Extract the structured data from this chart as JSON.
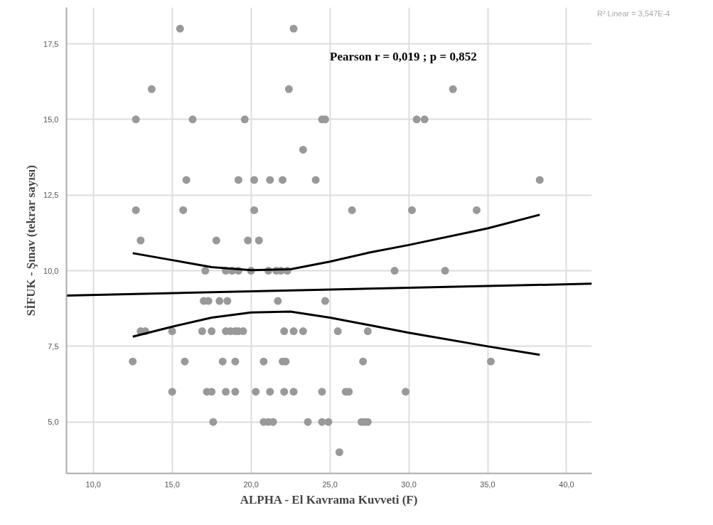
{
  "chart_data": {
    "type": "scatter",
    "xlabel": "ALPHA - El Kavrama Kuvveti (F)",
    "ylabel": "SİFUK - Şınav (tekrar sayısı)",
    "annotations": [
      "Pearson r = 0,019 ; p = 0,852",
      "R² Linear = 3,547E-4"
    ],
    "xlim": [
      8.3,
      41.6
    ],
    "ylim": [
      3.3,
      18.7
    ],
    "xticks": [
      {
        "value": 10,
        "label": "10,0"
      },
      {
        "value": 15,
        "label": "15,0"
      },
      {
        "value": 20,
        "label": "20,0"
      },
      {
        "value": 25,
        "label": "25,0"
      },
      {
        "value": 30,
        "label": "30,0"
      },
      {
        "value": 35,
        "label": "35,0"
      },
      {
        "value": 40,
        "label": "40,0"
      }
    ],
    "yticks": [
      {
        "value": 5,
        "label": "5,0"
      },
      {
        "value": 7.5,
        "label": "7,5"
      },
      {
        "value": 10,
        "label": "10,0"
      },
      {
        "value": 12.5,
        "label": "12,5"
      },
      {
        "value": 15,
        "label": "15,0"
      },
      {
        "value": 17.5,
        "label": "17,5"
      }
    ],
    "grid": true,
    "line_style": "solid",
    "series": [
      {
        "marker": "circle",
        "color": "#999999",
        "x": [
          15.5,
          22.7,
          13.7,
          22.4,
          32.8,
          12.7,
          16.3,
          19.6,
          24.5,
          24.7,
          30.5,
          31.0,
          23.3,
          15.9,
          19.2,
          20.2,
          21.2,
          22.0,
          24.1,
          38.3,
          12.7,
          15.7,
          20.2,
          26.4,
          30.2,
          34.3,
          13.0,
          17.8,
          19.8,
          20.5,
          17.1,
          18.4,
          18.8,
          19.2,
          20.0,
          21.1,
          21.6,
          21.9,
          22.3,
          29.1,
          32.3,
          17.0,
          17.3,
          18.0,
          18.5,
          21.7,
          24.7,
          13.0,
          13.3,
          15.0,
          16.9,
          17.5,
          18.4,
          18.7,
          19.0,
          19.2,
          19.5,
          22.1,
          22.7,
          23.3,
          25.5,
          27.4,
          12.5,
          15.8,
          18.2,
          19.0,
          20.8,
          22.0,
          22.2,
          27.1,
          35.2,
          15.0,
          17.2,
          17.5,
          18.4,
          19.0,
          20.3,
          21.2,
          22.1,
          22.7,
          24.5,
          26.0,
          26.2,
          29.8,
          17.6,
          20.8,
          21.1,
          21.4,
          23.6,
          24.5,
          24.9,
          27.0,
          27.2,
          27.4,
          25.6
        ],
        "values": [
          18,
          18,
          16,
          16,
          16,
          15,
          15,
          15,
          15,
          15,
          15,
          15,
          14,
          13,
          13,
          13,
          13,
          13,
          13,
          13,
          12,
          12,
          12,
          12,
          12,
          12,
          11,
          11,
          11,
          11,
          10,
          10,
          10,
          10,
          10,
          10,
          10,
          10,
          10,
          10,
          10,
          9,
          9,
          9,
          9,
          9,
          9,
          8,
          8,
          8,
          8,
          8,
          8,
          8,
          8,
          8,
          8,
          8,
          8,
          8,
          8,
          8,
          7,
          7,
          7,
          7,
          7,
          7,
          7,
          7,
          7,
          6,
          6,
          6,
          6,
          6,
          6,
          6,
          6,
          6,
          6,
          6,
          6,
          6,
          5,
          5,
          5,
          5,
          5,
          5,
          5,
          5,
          5,
          5,
          4
        ]
      },
      {
        "type": "line",
        "color": "#000000",
        "x": [
          8.3,
          41.6
        ],
        "values": [
          9.18,
          9.57
        ]
      },
      {
        "type": "line",
        "color": "#000000",
        "x": [
          12.5,
          15,
          17.5,
          20,
          22.5,
          25,
          27.5,
          30,
          35,
          38.3
        ],
        "values": [
          10.58,
          10.35,
          10.12,
          10.02,
          10.05,
          10.3,
          10.6,
          10.85,
          11.4,
          11.85
        ]
      },
      {
        "type": "line",
        "color": "#000000",
        "x": [
          12.5,
          15,
          17.5,
          20,
          22.5,
          25,
          27.5,
          30,
          35,
          38.3
        ],
        "values": [
          7.82,
          8.15,
          8.45,
          8.62,
          8.65,
          8.45,
          8.2,
          7.95,
          7.5,
          7.22
        ]
      }
    ]
  }
}
